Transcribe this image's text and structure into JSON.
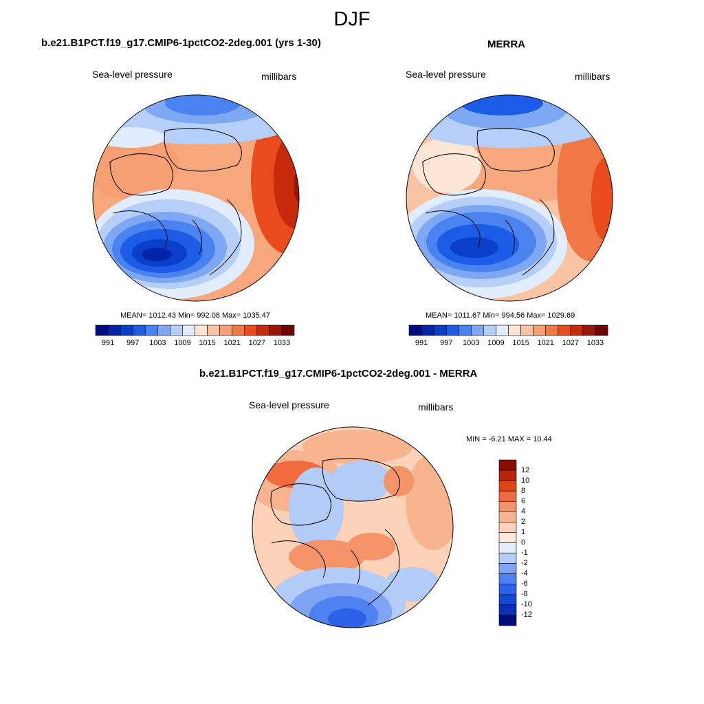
{
  "figure": {
    "season": "DJF"
  },
  "colors": {
    "abs_scale": [
      "#000c7e",
      "#0025a8",
      "#0a3fc9",
      "#1d5ce6",
      "#4a82f0",
      "#7fa8f4",
      "#b6cff8",
      "#e1ecfc",
      "#fde6d6",
      "#f9c4a3",
      "#f59f72",
      "#f07846",
      "#e94b1d",
      "#c62a0a",
      "#9a1506",
      "#6e0202"
    ],
    "diff_scale": [
      "#000c7e",
      "#0a30b8",
      "#1448d6",
      "#2b62e8",
      "#4f82f0",
      "#7ea4f3",
      "#b3cbf7",
      "#e3edfc",
      "#fdeadf",
      "#fbd2b8",
      "#f8b48f",
      "#f59368",
      "#f06c3e",
      "#e14416",
      "#b82405",
      "#8a0b02"
    ]
  },
  "panels": {
    "model": {
      "title": "b.e21.B1PCT.f19_g17.CMIP6-1pctCO2-2deg.001 (yrs 1-30)",
      "left_label": "Sea-level pressure",
      "right_label": "millibars",
      "stats": "MEAN= 1012.43  Min= 992.08  Max= 1035.47",
      "colorbar_ticks": [
        "991",
        "997",
        "1003",
        "1009",
        "1015",
        "1021",
        "1027",
        "1033"
      ]
    },
    "obs": {
      "title": "MERRA",
      "left_label": "Sea-level pressure",
      "right_label": "millibars",
      "stats": "MEAN= 1011.67  Min= 994.56  Max= 1029.69",
      "colorbar_ticks": [
        "991",
        "997",
        "1003",
        "1009",
        "1015",
        "1021",
        "1027",
        "1033"
      ]
    },
    "diff": {
      "title": "b.e21.B1PCT.f19_g17.CMIP6-1pctCO2-2deg.001 - MERRA",
      "left_label": "Sea-level pressure",
      "right_label": "millibars",
      "stats": "MIN =  -6.21 MAX =  10.44",
      "colorbar_ticks": [
        "12",
        "10",
        "8",
        "6",
        "4",
        "2",
        "1",
        "0",
        "-1",
        "-2",
        "-4",
        "-6",
        "-8",
        "-10",
        "-12"
      ]
    }
  }
}
